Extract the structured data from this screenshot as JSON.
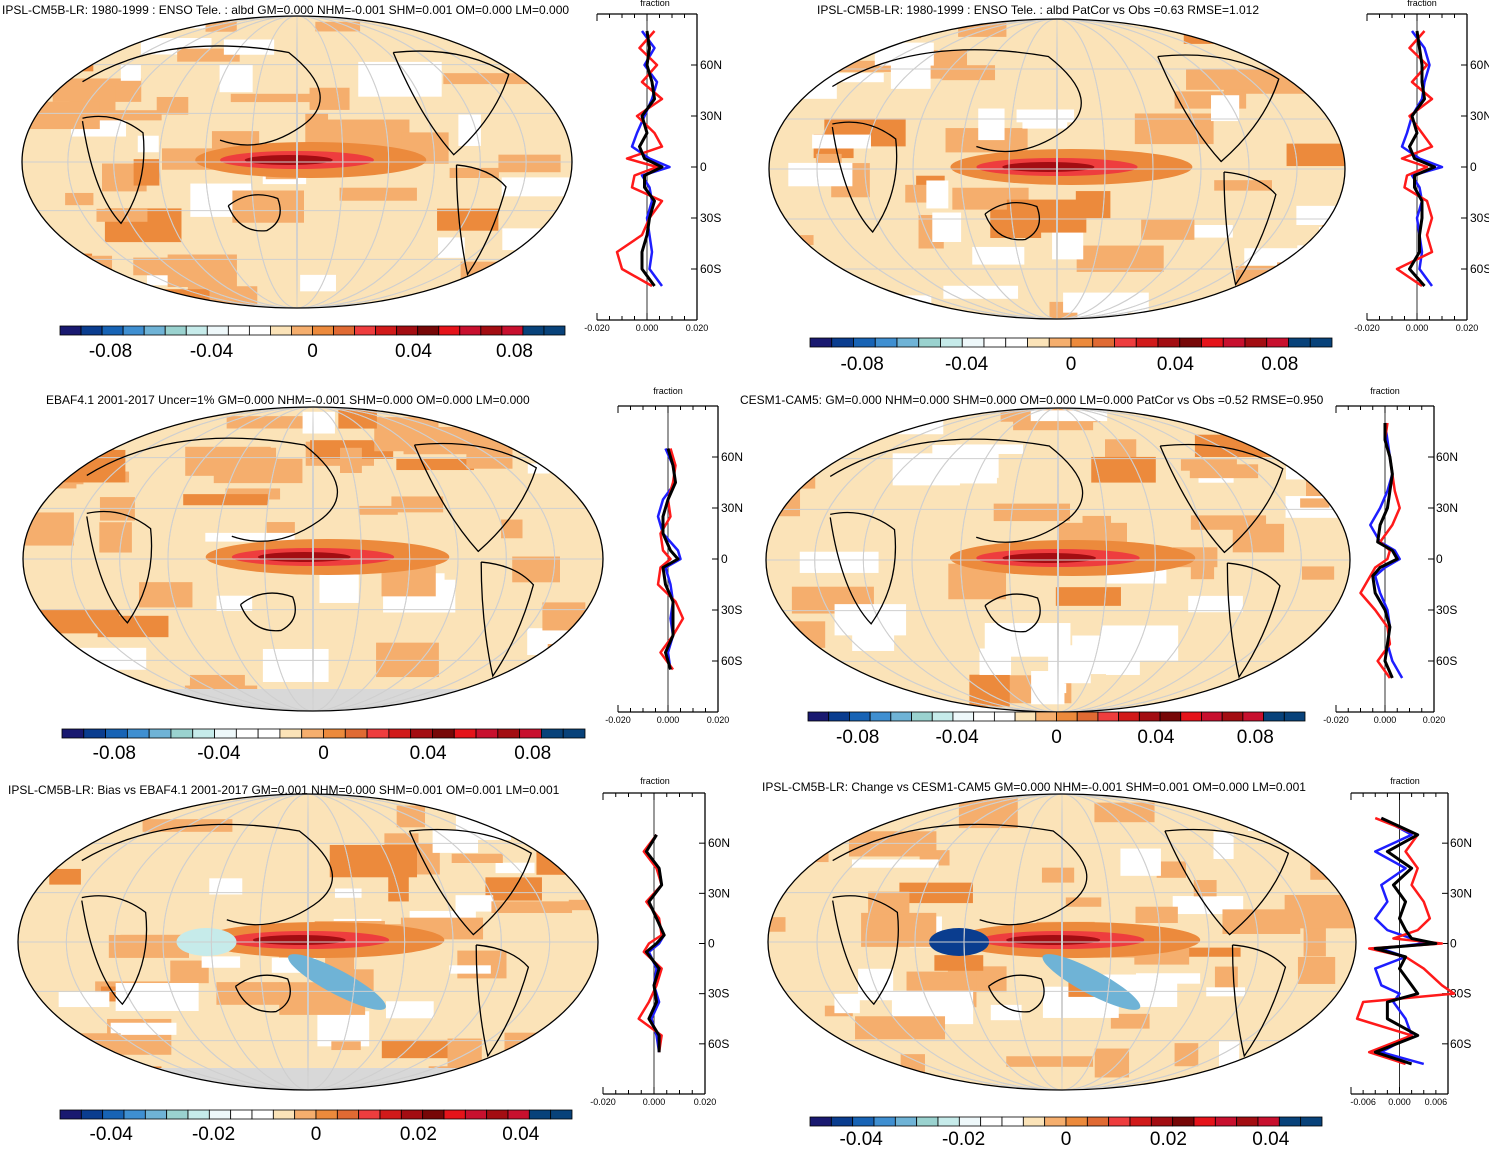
{
  "palette": {
    "blue": [
      "#191970",
      "#0a3d8f",
      "#1763b5",
      "#3f8fd1",
      "#6fb3d6",
      "#9ad2cf",
      "#c6ebea",
      "#eef8fa"
    ],
    "neutral": "#ffffff",
    "red": [
      "#fbe3b8",
      "#f5ae6d",
      "#ec8a3c",
      "#e06a33",
      "#ee3d3e",
      "#d11a1a",
      "#a30d12",
      "#770707",
      "#e5131a",
      "#c8102e"
    ],
    "end_blue": "#08427a",
    "land_missing": "#d8d8d8",
    "line_obs": "#1e1eff",
    "line_red": "#ff1a1a",
    "line_black": "#000000"
  },
  "chart_data": [
    {
      "id": "p1",
      "type": "heatmap",
      "title": "IPSL-CM5B-LR: 1980-1999 : ENSO Tele. : albd GM=0.000 NHM=-0.001 SHM=0.001 OM=0.000 LM=0.000",
      "colorbar_ticks": [
        "-0.08",
        "-0.04",
        "0",
        "0.04",
        "0.08"
      ],
      "colorbar_range": [
        -0.1,
        0.1
      ],
      "zonal_plot": {
        "title": "fraction",
        "x_range": [
          -0.02,
          0.02
        ],
        "x_ticks": [
          "-0.020",
          "0.000",
          "0.020"
        ],
        "lat_ticks": [
          "60N",
          "30N",
          "0",
          "30S",
          "60S"
        ],
        "lat_values": [
          60,
          30,
          0,
          -30,
          -60
        ],
        "series": [
          {
            "name": "blue",
            "lat": [
              80,
              70,
              60,
              50,
              40,
              30,
              20,
              12,
              5,
              0,
              -5,
              -12,
              -20,
              -30,
              -40,
              -50,
              -60,
              -70
            ],
            "values": [
              -0.002,
              0.003,
              -0.001,
              0.004,
              0.002,
              -0.001,
              -0.004,
              -0.006,
              0.001,
              0.009,
              -0.002,
              0.001,
              0.002,
              0.0,
              0.001,
              0.002,
              0.001,
              0.006
            ]
          },
          {
            "name": "red",
            "lat": [
              80,
              70,
              60,
              50,
              40,
              30,
              20,
              12,
              5,
              0,
              -5,
              -12,
              -20,
              -30,
              -40,
              -50,
              -60,
              -70
            ],
            "values": [
              0.003,
              -0.003,
              0.004,
              -0.002,
              0.006,
              -0.004,
              0.003,
              0.006,
              -0.008,
              0.004,
              -0.005,
              -0.006,
              0.006,
              0.001,
              -0.002,
              -0.012,
              -0.01,
              0.002
            ]
          },
          {
            "name": "black",
            "lat": [
              80,
              70,
              60,
              50,
              40,
              30,
              20,
              12,
              5,
              0,
              -5,
              -12,
              -20,
              -30,
              -40,
              -50,
              -60,
              -70
            ],
            "values": [
              0.0,
              0.001,
              0.0,
              0.002,
              0.003,
              -0.002,
              0.0,
              -0.003,
              -0.001,
              0.006,
              -0.001,
              -0.001,
              0.003,
              0.001,
              0.0,
              -0.002,
              -0.002,
              0.003
            ]
          }
        ]
      }
    },
    {
      "id": "p2",
      "type": "heatmap",
      "title": "IPSL-CM5B-LR: 1980-1999 : ENSO Tele. : albd PatCor vs Obs =0.63 RMSE=1.012",
      "colorbar_ticks": [
        "-0.08",
        "-0.04",
        "0",
        "0.04",
        "0.08"
      ],
      "colorbar_range": [
        -0.1,
        0.1
      ],
      "zonal_plot": {
        "title": "fraction",
        "x_range": [
          -0.02,
          0.02
        ],
        "x_ticks": [
          "-0.020",
          "0.000",
          "0.020"
        ],
        "lat_ticks": [
          "60N",
          "30N",
          "0",
          "30S",
          "60S"
        ],
        "lat_values": [
          60,
          30,
          0,
          -30,
          -60
        ],
        "series": [
          {
            "name": "blue",
            "lat": [
              80,
              70,
              60,
              50,
              40,
              30,
              20,
              12,
              5,
              0,
              -5,
              -12,
              -20,
              -30,
              -40,
              -50,
              -60,
              -70
            ],
            "values": [
              -0.002,
              0.003,
              0.005,
              0.003,
              0.002,
              -0.002,
              -0.004,
              -0.006,
              0.001,
              0.01,
              -0.002,
              0.001,
              0.002,
              0.0,
              0.001,
              0.002,
              0.001,
              0.006
            ]
          },
          {
            "name": "red",
            "lat": [
              80,
              70,
              60,
              50,
              40,
              30,
              20,
              12,
              5,
              0,
              -5,
              -12,
              -20,
              -30,
              -40,
              -50,
              -60,
              -70
            ],
            "values": [
              0.003,
              -0.003,
              0.004,
              -0.002,
              0.006,
              -0.003,
              0.002,
              0.006,
              -0.006,
              0.004,
              -0.004,
              -0.005,
              0.004,
              0.006,
              0.004,
              0.006,
              -0.008,
              0.002
            ]
          },
          {
            "name": "black",
            "lat": [
              80,
              70,
              60,
              50,
              40,
              30,
              20,
              12,
              5,
              0,
              -5,
              -12,
              -20,
              -30,
              -40,
              -50,
              -60,
              -70
            ],
            "values": [
              0.0,
              0.001,
              0.002,
              0.002,
              0.003,
              -0.002,
              0.0,
              -0.003,
              -0.001,
              0.007,
              -0.001,
              -0.001,
              0.002,
              0.002,
              0.001,
              0.001,
              -0.003,
              0.003
            ]
          }
        ]
      }
    },
    {
      "id": "p3",
      "type": "heatmap",
      "title": "EBAF4.1 2001-2017 Uncer=1% GM=0.000 NHM=-0.001 SHM=0.000 OM=0.000 LM=0.000",
      "colorbar_ticks": [
        "-0.08",
        "-0.04",
        "0",
        "0.04",
        "0.08"
      ],
      "colorbar_range": [
        -0.1,
        0.1
      ],
      "zonal_plot": {
        "title": "fraction",
        "x_range": [
          -0.02,
          0.02
        ],
        "x_ticks": [
          "-0.020",
          "0.000",
          "0.020"
        ],
        "lat_ticks": [
          "60N",
          "30N",
          "0",
          "30S",
          "60S"
        ],
        "lat_values": [
          60,
          30,
          0,
          -30,
          -60
        ],
        "series": [
          {
            "name": "blue",
            "lat": [
              65,
              55,
              45,
              35,
              25,
              15,
              5,
              0,
              -5,
              -15,
              -25,
              -35,
              -45,
              -55,
              -65
            ],
            "values": [
              -0.001,
              0.002,
              0.003,
              -0.002,
              -0.004,
              -0.002,
              0.004,
              0.005,
              -0.001,
              0.001,
              0.002,
              0.001,
              0.002,
              0.0,
              0.001
            ]
          },
          {
            "name": "red",
            "lat": [
              65,
              55,
              45,
              35,
              25,
              15,
              5,
              0,
              -5,
              -15,
              -25,
              -35,
              -45,
              -55,
              -65
            ],
            "values": [
              0.001,
              0.003,
              0.002,
              0.0,
              0.001,
              -0.003,
              -0.002,
              0.001,
              -0.003,
              -0.004,
              0.003,
              0.006,
              0.002,
              -0.003,
              0.002
            ]
          },
          {
            "name": "black",
            "lat": [
              65,
              55,
              45,
              35,
              25,
              15,
              5,
              0,
              -5,
              -15,
              -25,
              -35,
              -45,
              -55,
              -65
            ],
            "values": [
              0.0,
              0.002,
              0.003,
              0.0,
              -0.002,
              -0.002,
              0.001,
              0.004,
              -0.002,
              -0.001,
              0.002,
              0.002,
              0.002,
              -0.001,
              0.001
            ]
          }
        ]
      }
    },
    {
      "id": "p4",
      "type": "heatmap",
      "title": "CESM1-CAM5: GM=0.000 NHM=0.000 SHM=0.000 OM=0.000 LM=0.000 PatCor vs Obs =0.52 RMSE=0.950",
      "colorbar_ticks": [
        "-0.08",
        "-0.04",
        "0",
        "0.04",
        "0.08"
      ],
      "colorbar_range": [
        -0.1,
        0.1
      ],
      "zonal_plot": {
        "title": "fraction",
        "x_range": [
          -0.02,
          0.02
        ],
        "x_ticks": [
          "-0.020",
          "0.000",
          "0.020"
        ],
        "lat_ticks": [
          "60N",
          "30N",
          "0",
          "30S",
          "60S"
        ],
        "lat_values": [
          60,
          30,
          0,
          -30,
          -60
        ],
        "series": [
          {
            "name": "blue",
            "lat": [
              80,
              70,
              60,
              50,
              40,
              30,
              20,
              10,
              5,
              0,
              -5,
              -10,
              -20,
              -30,
              -40,
              -50,
              -60,
              -70
            ],
            "values": [
              0.0,
              0.001,
              0.002,
              0.003,
              0.001,
              -0.002,
              -0.006,
              -0.002,
              0.004,
              0.006,
              0.0,
              -0.004,
              -0.002,
              0.001,
              0.002,
              0.001,
              0.003,
              0.007
            ]
          },
          {
            "name": "red",
            "lat": [
              80,
              70,
              60,
              50,
              40,
              30,
              20,
              10,
              5,
              0,
              -5,
              -10,
              -20,
              -30,
              -40,
              -50,
              -60,
              -70
            ],
            "values": [
              0.001,
              0.0,
              0.002,
              0.003,
              0.004,
              0.006,
              0.003,
              -0.002,
              0.002,
              0.001,
              -0.004,
              -0.006,
              -0.01,
              -0.004,
              0.001,
              0.002,
              -0.003,
              0.002
            ]
          },
          {
            "name": "black",
            "lat": [
              80,
              70,
              60,
              50,
              40,
              30,
              20,
              10,
              5,
              0,
              -5,
              -10,
              -20,
              -30,
              -40,
              -50,
              -60,
              -70
            ],
            "values": [
              0.0,
              0.0,
              0.002,
              0.003,
              0.002,
              0.001,
              -0.002,
              -0.003,
              0.003,
              0.005,
              -0.002,
              -0.005,
              -0.004,
              0.0,
              0.002,
              0.001,
              0.0,
              0.003
            ]
          }
        ]
      }
    },
    {
      "id": "p5",
      "type": "heatmap",
      "title": "IPSL-CM5B-LR: Bias vs EBAF4.1 2001-2017 GM=0.001 NHM=0.000 SHM=0.001 OM=0.001 LM=0.001",
      "colorbar_ticks": [
        "-0.04",
        "-0.02",
        "0",
        "0.02",
        "0.04"
      ],
      "colorbar_range": [
        -0.05,
        0.05
      ],
      "zonal_plot": {
        "title": "fraction",
        "x_range": [
          -0.02,
          0.02
        ],
        "x_ticks": [
          "-0.020",
          "0.000",
          "0.020"
        ],
        "lat_ticks": [
          "60N",
          "30N",
          "0",
          "30S",
          "60S"
        ],
        "lat_values": [
          60,
          30,
          0,
          -30,
          -60
        ],
        "series": [
          {
            "name": "blue",
            "lat": [
              65,
              55,
              45,
              35,
              25,
              15,
              5,
              0,
              -5,
              -15,
              -25,
              -35,
              -45,
              -55,
              -65
            ],
            "values": [
              0.001,
              -0.003,
              0.002,
              0.003,
              -0.002,
              0.001,
              0.004,
              0.002,
              -0.002,
              0.001,
              0.0,
              0.002,
              -0.001,
              0.001,
              0.002
            ]
          },
          {
            "name": "red",
            "lat": [
              65,
              55,
              45,
              35,
              25,
              15,
              5,
              0,
              -5,
              -15,
              -25,
              -35,
              -45,
              -55,
              -65
            ],
            "values": [
              0.001,
              -0.004,
              0.001,
              0.003,
              -0.003,
              0.002,
              0.003,
              -0.002,
              -0.004,
              0.003,
              0.001,
              -0.002,
              -0.006,
              0.003,
              0.002
            ]
          },
          {
            "name": "black",
            "lat": [
              65,
              55,
              45,
              35,
              25,
              15,
              5,
              0,
              -5,
              -15,
              -25,
              -35,
              -45,
              -55,
              -65
            ],
            "values": [
              0.001,
              -0.003,
              0.002,
              0.003,
              -0.002,
              0.001,
              0.004,
              0.001,
              -0.003,
              0.002,
              0.0,
              0.001,
              -0.002,
              0.002,
              0.002
            ]
          }
        ]
      }
    },
    {
      "id": "p6",
      "type": "heatmap",
      "title": "IPSL-CM5B-LR: Change vs CESM1-CAM5 GM=0.000 NHM=-0.001 SHM=0.001 OM=0.000 LM=0.001",
      "colorbar_ticks": [
        "-0.04",
        "-0.02",
        "0",
        "0.02",
        "0.04"
      ],
      "colorbar_range": [
        -0.05,
        0.05
      ],
      "zonal_plot": {
        "title": "fraction",
        "x_range": [
          -0.008,
          0.008
        ],
        "x_ticks": [
          "-0.006",
          "0.000",
          "0.006"
        ],
        "lat_ticks": [
          "60N",
          "30N",
          "0",
          "30S",
          "60S"
        ],
        "lat_values": [
          60,
          30,
          0,
          -30,
          -60
        ],
        "series": [
          {
            "name": "blue",
            "lat": [
              75,
              65,
              55,
              45,
              35,
              25,
              15,
              8,
              3,
              0,
              -3,
              -8,
              -15,
              -25,
              -30,
              -35,
              -45,
              -55,
              -65,
              -72
            ],
            "values": [
              -0.003,
              0.002,
              -0.004,
              0.001,
              -0.003,
              -0.002,
              -0.004,
              -0.002,
              0.002,
              0.004,
              -0.003,
              0.001,
              -0.004,
              -0.003,
              0.0,
              -0.001,
              0.001,
              0.002,
              -0.003,
              0.004
            ]
          },
          {
            "name": "red",
            "lat": [
              75,
              65,
              55,
              45,
              35,
              25,
              15,
              8,
              3,
              0,
              -3,
              -8,
              -15,
              -25,
              -30,
              -35,
              -45,
              -55,
              -65,
              -72
            ],
            "values": [
              -0.004,
              0.003,
              0.001,
              0.003,
              0.002,
              0.004,
              0.005,
              0.003,
              -0.001,
              0.007,
              -0.005,
              0.001,
              0.004,
              0.007,
              0.009,
              -0.006,
              -0.007,
              0.002,
              -0.005,
              0.001
            ]
          },
          {
            "name": "black",
            "lat": [
              75,
              65,
              55,
              45,
              35,
              25,
              15,
              8,
              3,
              0,
              -3,
              -8,
              -15,
              -25,
              -30,
              -35,
              -45,
              -55,
              -65,
              -72
            ],
            "values": [
              -0.003,
              0.003,
              -0.002,
              0.002,
              -0.001,
              0.001,
              0.0,
              0.001,
              0.002,
              0.006,
              -0.004,
              0.001,
              0.0,
              0.002,
              0.003,
              -0.002,
              -0.002,
              0.003,
              -0.004,
              0.002
            ]
          }
        ]
      }
    }
  ]
}
